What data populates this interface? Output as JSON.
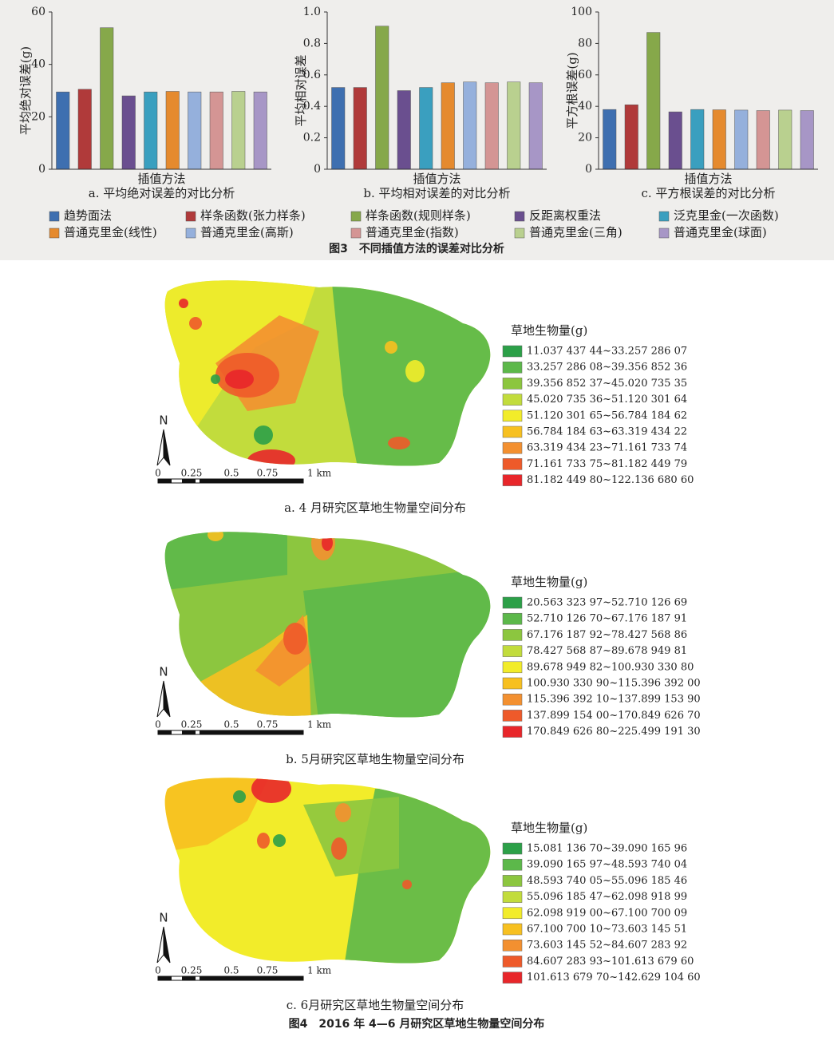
{
  "chart_data": [
    {
      "type": "bar",
      "ylabel": "平均绝对误差(g)",
      "xlabel": "插值方法",
      "caption": "a. 平均绝对误差的对比分析",
      "values": [
        29.5,
        30.5,
        54,
        28,
        29.5,
        29.7,
        29.5,
        29.5,
        29.7,
        29.5
      ],
      "ylim": [
        0,
        60
      ],
      "yticks": [
        0,
        20,
        40,
        60
      ]
    },
    {
      "type": "bar",
      "ylabel": "平均相对误差",
      "xlabel": "插值方法",
      "caption": "b. 平均相对误差的对比分析",
      "values": [
        0.52,
        0.52,
        0.91,
        0.5,
        0.52,
        0.55,
        0.555,
        0.55,
        0.555,
        0.55
      ],
      "ylim": [
        0,
        1
      ],
      "yticks": [
        0,
        0.2,
        0.4,
        0.6,
        0.8,
        {
          "value": 1,
          "label": "1.0"
        }
      ]
    },
    {
      "type": "bar",
      "ylabel": "平方根误差(g)",
      "xlabel": "插值方法",
      "caption": "c. 平方根误差的对比分析",
      "values": [
        38,
        41,
        87,
        36.5,
        38,
        37.8,
        37.6,
        37.3,
        37.6,
        37.3
      ],
      "ylim": [
        0,
        100
      ],
      "yticks": [
        0,
        20,
        40,
        60,
        80,
        100
      ]
    }
  ],
  "legend": [
    {
      "name": "趋势面法",
      "color": "#3e6fb0"
    },
    {
      "name": "样条函数(张力样条)",
      "color": "#b03a3a"
    },
    {
      "name": "样条函数(规则样条)",
      "color": "#86a84a"
    },
    {
      "name": "反距离权重法",
      "color": "#6a4f8f"
    },
    {
      "name": "泛克里金(一次函数)",
      "color": "#3a9fbf"
    },
    {
      "name": "普通克里金(线性)",
      "color": "#e58a2e"
    },
    {
      "name": "普通克里金(高斯)",
      "color": "#95b0dc"
    },
    {
      "name": "普通克里金(指数)",
      "color": "#d49594"
    },
    {
      "name": "普通克里金(三角)",
      "color": "#b9d08f"
    },
    {
      "name": "普通克里金(球面)",
      "color": "#a796c6"
    }
  ],
  "figure3_caption": "图3　不同插值方法的误差对比分析",
  "class_colors": [
    "#2ca048",
    "#5cb84a",
    "#8cc63f",
    "#c2dc3c",
    "#f2ec2a",
    "#f7c020",
    "#f39030",
    "#ee5a2a",
    "#e8262a"
  ],
  "maps": [
    {
      "legend_title": "草地生物量(g)",
      "north": "N",
      "scale_labels": [
        "0",
        "0.25",
        "0.5",
        "0.75",
        "1 km"
      ],
      "caption": "a. 4 月研究区草地生物量空间分布",
      "classes": [
        "11.037 437 44~33.257 286 07",
        "33.257 286 08~39.356 852 36",
        "39.356 852 37~45.020 735 35",
        "45.020 735 36~51.120 301 64",
        "51.120 301 65~56.784 184 62",
        "56.784 184 63~63.319 434 22",
        "63.319 434 23~71.161 733 74",
        "71.161 733 75~81.182 449 79",
        "81.182 449 80~122.136 680 60"
      ]
    },
    {
      "legend_title": "草地生物量(g)",
      "north": "N",
      "scale_labels": [
        "0",
        "0.25",
        "0.5",
        "0.75",
        "1 km"
      ],
      "caption": "b. 5月研究区草地生物量空间分布",
      "classes": [
        "20.563 323 97~52.710 126 69",
        "52.710 126 70~67.176 187 91",
        "67.176 187 92~78.427 568 86",
        "78.427 568 87~89.678 949 81",
        "89.678 949 82~100.930 330 80",
        "100.930 330 90~115.396 392 00",
        "115.396 392 10~137.899 153 90",
        "137.899 154 00~170.849 626 70",
        "170.849 626 80~225.499 191 30"
      ]
    },
    {
      "legend_title": "草地生物量(g)",
      "north": "N",
      "scale_labels": [
        "0",
        "0.25",
        "0.5",
        "0.75",
        "1 km"
      ],
      "caption": "c. 6月研究区草地生物量空间分布",
      "classes": [
        "15.081 136 70~39.090 165 96",
        "39.090 165 97~48.593 740 04",
        "48.593 740 05~55.096 185 46",
        "55.096 185 47~62.098 918 99",
        "62.098 919 00~67.100 700 09",
        "67.100 700 10~73.603 145 51",
        "73.603 145 52~84.607 283 92",
        "84.607 283 93~101.613 679 60",
        "101.613 679 70~142.629 104 60"
      ]
    }
  ],
  "figure4_caption": "图4　2016 年 4—6 月研究区草地生物量空间分布"
}
